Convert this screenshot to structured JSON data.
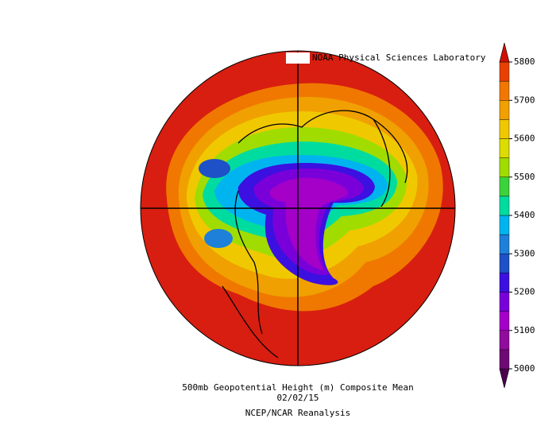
{
  "map": {
    "credit": "NOAA Physical Sciences Laboratory",
    "title": "500mb Geopotential Height (m) Composite Mean",
    "date": "02/02/15",
    "source": "NCEP/NCAR Reanalysis",
    "colorbar": {
      "ticks": [
        5000,
        5100,
        5200,
        5300,
        5400,
        5500,
        5600,
        5700,
        5800
      ],
      "levels": [
        5000,
        5050,
        5100,
        5150,
        5200,
        5250,
        5300,
        5350,
        5400,
        5450,
        5500,
        5550,
        5600,
        5650,
        5700,
        5750,
        5800
      ],
      "colors": [
        "#4b0050",
        "#6e0a74",
        "#900c9c",
        "#a400c8",
        "#7a00da",
        "#3c10e0",
        "#1e50c8",
        "#1e80d8",
        "#00b4f0",
        "#00dca0",
        "#3cd23c",
        "#a0dc00",
        "#dcdc00",
        "#f0c800",
        "#f0a000",
        "#f07800",
        "#e84000",
        "#d01000"
      ]
    }
  }
}
